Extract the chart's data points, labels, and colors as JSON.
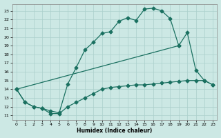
{
  "xlabel": "Humidex (Indice chaleur)",
  "bg_color": "#cce8e4",
  "grid_color": "#aacfcb",
  "line_color": "#1a7060",
  "xlim": [
    -0.5,
    23.5
  ],
  "ylim": [
    10.5,
    23.8
  ],
  "yticks": [
    11,
    12,
    13,
    14,
    15,
    16,
    17,
    18,
    19,
    20,
    21,
    22,
    23
  ],
  "xticks": [
    0,
    1,
    2,
    3,
    4,
    5,
    6,
    7,
    8,
    9,
    10,
    11,
    12,
    13,
    14,
    15,
    16,
    17,
    18,
    19,
    20,
    21,
    22,
    23
  ],
  "curve1_x": [
    0,
    1,
    2,
    3,
    4,
    5,
    6,
    7,
    8,
    9,
    10,
    11,
    12,
    13,
    14,
    15,
    16,
    17,
    18,
    19
  ],
  "curve1_y": [
    14.0,
    12.5,
    12.0,
    11.8,
    11.5,
    11.3,
    14.6,
    16.5,
    18.5,
    19.4,
    20.4,
    20.6,
    21.8,
    22.2,
    21.9,
    23.2,
    23.3,
    23.0,
    22.1,
    19.0
  ],
  "curve2_x": [
    0,
    1,
    2,
    3,
    4,
    5,
    6,
    7,
    8,
    9,
    10,
    11,
    12,
    13,
    14,
    15,
    16,
    17,
    18,
    19,
    20,
    21,
    22,
    23
  ],
  "curve2_y": [
    14.0,
    12.5,
    12.0,
    11.8,
    11.2,
    11.2,
    12.0,
    12.5,
    13.0,
    13.5,
    14.0,
    14.2,
    14.3,
    14.4,
    14.5,
    14.5,
    14.6,
    14.7,
    14.8,
    14.9,
    15.0,
    15.0,
    15.0,
    14.5
  ],
  "curve3_x": [
    0,
    19,
    20,
    21,
    22,
    23
  ],
  "curve3_y": [
    14.0,
    19.0,
    20.5,
    16.2,
    15.0,
    14.5
  ]
}
